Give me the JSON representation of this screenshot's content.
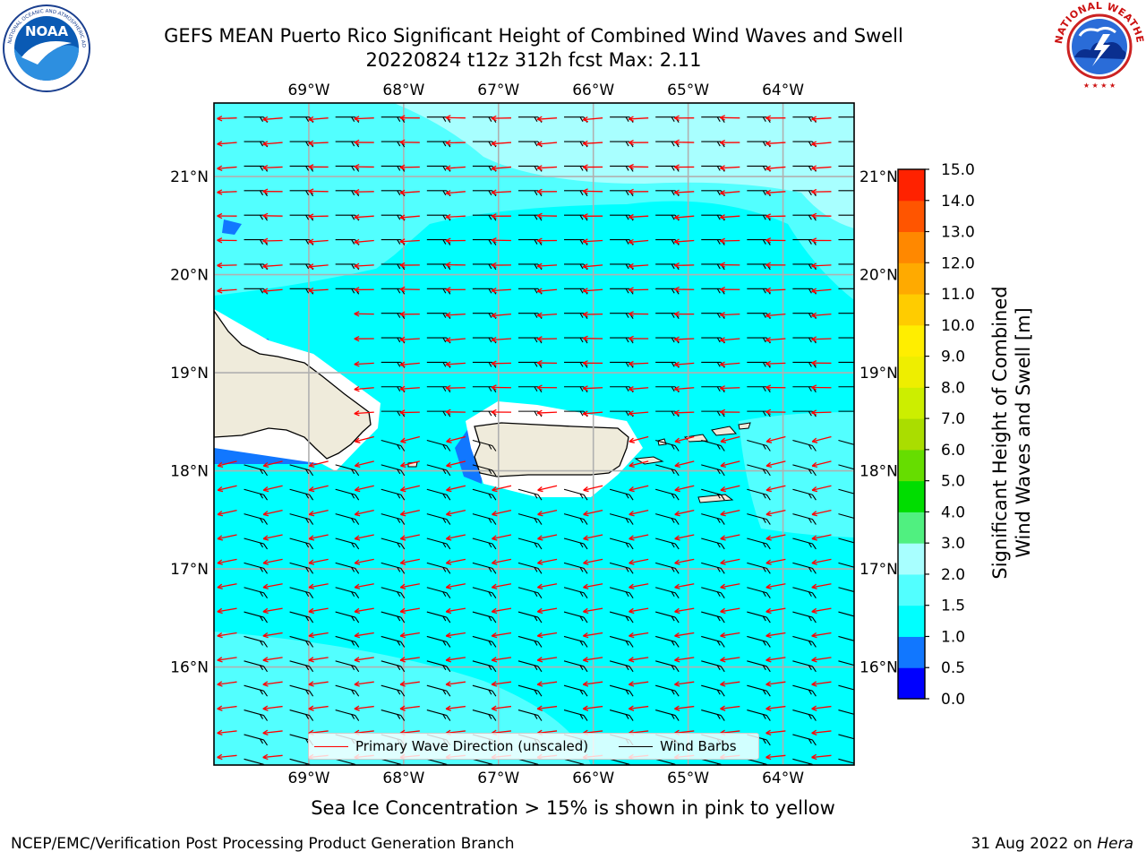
{
  "title": {
    "line1": "GEFS MEAN Puerto Rico Significant Height of Combined Wind Waves and Swell",
    "line2": "20220824 t12z 312h fcst   Max: 2.11"
  },
  "map": {
    "lon_ticks": [
      "69°W",
      "68°W",
      "67°W",
      "66°W",
      "65°W",
      "64°W"
    ],
    "lon_values": [
      -69,
      -68,
      -67,
      -66,
      -65,
      -64
    ],
    "lat_ticks": [
      "21°N",
      "20°N",
      "19°N",
      "18°N",
      "17°N",
      "16°N"
    ],
    "lat_values": [
      21,
      20,
      19,
      18,
      17,
      16
    ],
    "extent": {
      "lon_min": -70.0,
      "lon_max": -63.25,
      "lat_min": 15.0,
      "lat_max": 21.75
    },
    "colors": {
      "ocean_1_0_1_5": "#00ffff",
      "ocean_1_5_2_0": "#52ffff",
      "ocean_2_0_3_0": "#a8ffff",
      "ocean_0_5_1_0": "#1177ff",
      "land": "#efebdb",
      "wave_arrow": "#ff0000",
      "wind_barb": "#000000"
    },
    "prevailing_direction": "westward"
  },
  "colorbar": {
    "label_line1": "Significant Height of Combined",
    "label_line2": "Wind Waves and Swell [m]",
    "tick_labels": [
      "0.0",
      "0.5",
      "1.0",
      "1.5",
      "2.0",
      "3.0",
      "4.0",
      "5.0",
      "6.0",
      "7.0",
      "8.0",
      "9.0",
      "10.0",
      "11.0",
      "12.0",
      "13.0",
      "14.0",
      "15.0"
    ],
    "levels": [
      0,
      0.5,
      1,
      1.5,
      2,
      3,
      4,
      5,
      6,
      7,
      8,
      9,
      10,
      11,
      12,
      13,
      14,
      15
    ],
    "bin_colors": [
      "#0000ff",
      "#1177ff",
      "#00ffff",
      "#52ffff",
      "#a8ffff",
      "#50f080",
      "#00dd00",
      "#66dd00",
      "#aadd00",
      "#ccee00",
      "#eeee00",
      "#ffee00",
      "#ffcc00",
      "#ffaa00",
      "#ff8800",
      "#ff5500",
      "#ff2200"
    ]
  },
  "legend": {
    "wave_label": "Primary Wave Direction (unscaled)",
    "barb_label": "Wind Barbs"
  },
  "footer": {
    "note": "Sea Ice Concentration > 15% is shown in pink to yellow",
    "credit_left": "NCEP/EMC/Verification Post Processing Product Generation Branch",
    "credit_date": "31 Aug 2022 on ",
    "credit_host": "Hera"
  },
  "logos": {
    "noaa_text": "NOAA",
    "nws_ring_text": "NATIONAL WEATHER SERVICE"
  }
}
